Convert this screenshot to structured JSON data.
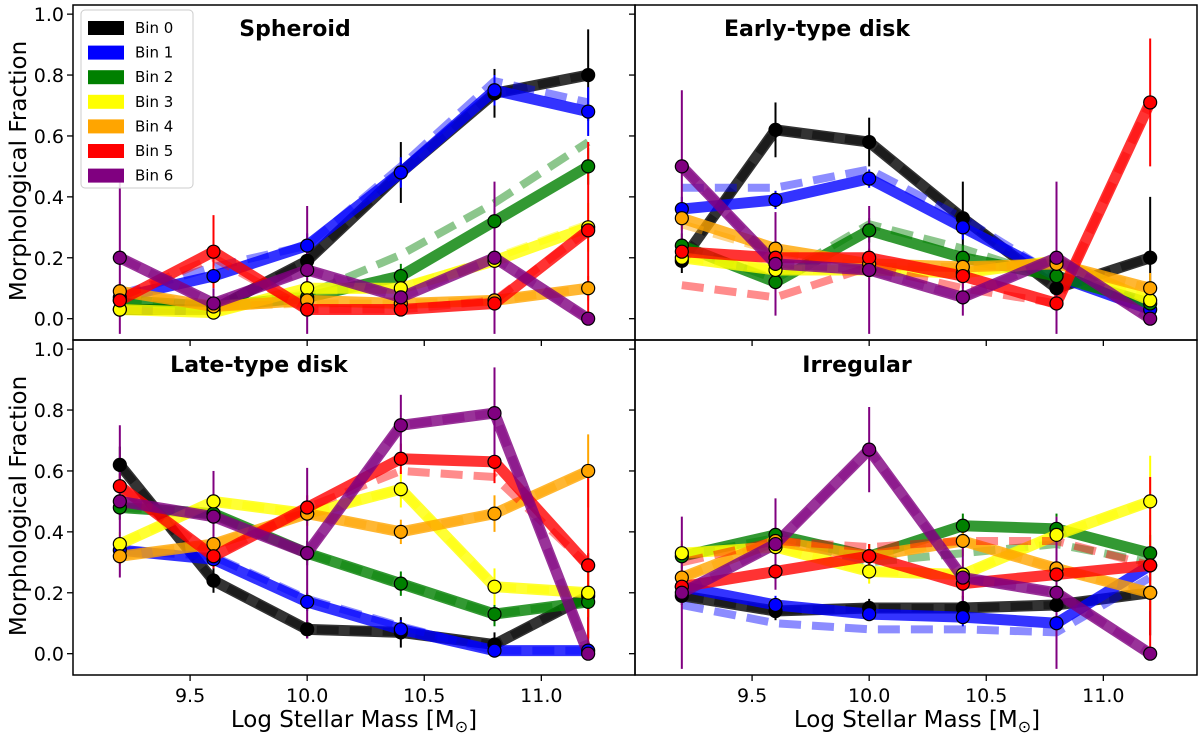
{
  "chart_data": {
    "type": "line",
    "xlabel": "Log Stellar Mass [M",
    "xlabel_sub": "⊙",
    "xlabel_close": "]",
    "ylabel": "Morphological Fraction",
    "x": [
      9.2,
      9.6,
      10.0,
      10.4,
      10.8,
      11.2
    ],
    "xlim": [
      9.0,
      11.4
    ],
    "ylim": [
      -0.07,
      1.03
    ],
    "xticks": [
      9.5,
      10.0,
      10.5,
      11.0
    ],
    "xtick_labels": [
      "9.5",
      "10.0",
      "10.5",
      "11.0"
    ],
    "yticks": [
      0.0,
      0.2,
      0.4,
      0.6,
      0.8,
      1.0
    ],
    "ytick_labels": [
      "0.0",
      "0.2",
      "0.4",
      "0.6",
      "0.8",
      "1.0"
    ],
    "legend": {
      "placement": "upper-left of top-left panel",
      "entries": [
        {
          "label": "Bin 0",
          "color": "#000000"
        },
        {
          "label": "Bin 1",
          "color": "#0000ff"
        },
        {
          "label": "Bin 2",
          "color": "#008000"
        },
        {
          "label": "Bin 3",
          "color": "#ffff00"
        },
        {
          "label": "Bin 4",
          "color": "#ffa500"
        },
        {
          "label": "Bin 5",
          "color": "#ff0000"
        },
        {
          "label": "Bin 6",
          "color": "#800080"
        }
      ]
    },
    "panels": [
      {
        "title": "Spheroid",
        "series": [
          {
            "name": "Bin 0",
            "values": [
              0.03,
              0.03,
              0.19,
              0.48,
              0.74,
              0.8
            ],
            "errors": [
              0.02,
              0.02,
              0.04,
              0.1,
              0.08,
              0.15
            ],
            "dashed": [
              0.03,
              0.03,
              0.19,
              0.48,
              0.74,
              0.8
            ]
          },
          {
            "name": "Bin 1",
            "values": [
              0.07,
              0.14,
              0.24,
              0.48,
              0.75,
              0.68
            ],
            "errors": [
              0.03,
              0.03,
              0.04,
              0.05,
              0.05,
              0.08
            ],
            "dashed": [
              0.08,
              0.17,
              0.24,
              0.5,
              0.78,
              0.71
            ]
          },
          {
            "name": "Bin 2",
            "values": [
              0.06,
              0.04,
              0.07,
              0.14,
              0.32,
              0.5
            ],
            "errors": [
              0.03,
              0.02,
              0.03,
              0.04,
              0.05,
              0.06
            ],
            "dashed": [
              0.06,
              0.04,
              0.08,
              0.21,
              0.38,
              0.58
            ]
          },
          {
            "name": "Bin 3",
            "values": [
              0.03,
              0.02,
              0.1,
              0.1,
              0.19,
              0.3
            ],
            "errors": [
              0.02,
              0.02,
              0.03,
              0.03,
              0.05,
              0.08
            ],
            "dashed": [
              0.03,
              0.02,
              0.09,
              0.1,
              0.2,
              0.31
            ]
          },
          {
            "name": "Bin 4",
            "values": [
              0.09,
              0.04,
              0.06,
              0.05,
              0.06,
              0.1
            ],
            "errors": [
              0.03,
              0.02,
              0.02,
              0.02,
              0.02,
              0.04
            ],
            "dashed": [
              0.09,
              0.04,
              0.05,
              0.05,
              0.06,
              0.1
            ]
          },
          {
            "name": "Bin 5",
            "values": [
              0.06,
              0.22,
              0.03,
              0.03,
              0.05,
              0.29
            ],
            "errors": [
              0.03,
              0.12,
              0.02,
              0.02,
              0.03,
              0.29
            ],
            "dashed": [
              0.07,
              0.2,
              0.03,
              0.03,
              0.06,
              0.29
            ]
          },
          {
            "name": "Bin 6",
            "values": [
              0.2,
              0.05,
              0.16,
              0.07,
              0.2,
              0.0
            ],
            "errors": [
              0.25,
              0.05,
              0.21,
              0.06,
              0.25,
              0.0
            ],
            "dashed": [
              0.2,
              0.05,
              0.16,
              0.07,
              0.2,
              0.0
            ]
          }
        ]
      },
      {
        "title": "Early-type disk",
        "series": [
          {
            "name": "Bin 0",
            "values": [
              0.19,
              0.62,
              0.58,
              0.33,
              0.1,
              0.2
            ],
            "errors": [
              0.04,
              0.09,
              0.08,
              0.12,
              0.06,
              0.2
            ],
            "dashed": [
              0.19,
              0.62,
              0.58,
              0.33,
              0.1,
              0.2
            ]
          },
          {
            "name": "Bin 1",
            "values": [
              0.36,
              0.39,
              0.46,
              0.3,
              0.14,
              0.03
            ],
            "errors": [
              0.04,
              0.03,
              0.03,
              0.04,
              0.05,
              0.05
            ],
            "dashed": [
              0.43,
              0.43,
              0.49,
              0.33,
              0.14,
              0.05
            ]
          },
          {
            "name": "Bin 2",
            "values": [
              0.24,
              0.12,
              0.29,
              0.2,
              0.14,
              0.05
            ],
            "errors": [
              0.04,
              0.03,
              0.04,
              0.04,
              0.05,
              0.05
            ],
            "dashed": [
              0.24,
              0.13,
              0.31,
              0.23,
              0.13,
              0.05
            ]
          },
          {
            "name": "Bin 3",
            "values": [
              0.2,
              0.16,
              0.16,
              0.15,
              0.19,
              0.06
            ],
            "errors": [
              0.03,
              0.03,
              0.03,
              0.04,
              0.06,
              0.06
            ],
            "dashed": [
              0.2,
              0.16,
              0.16,
              0.15,
              0.19,
              0.06
            ]
          },
          {
            "name": "Bin 4",
            "values": [
              0.33,
              0.23,
              0.18,
              0.17,
              0.18,
              0.1
            ],
            "errors": [
              0.04,
              0.04,
              0.03,
              0.04,
              0.05,
              0.05
            ],
            "dashed": [
              0.31,
              0.22,
              0.17,
              0.17,
              0.18,
              0.1
            ]
          },
          {
            "name": "Bin 5",
            "values": [
              0.22,
              0.2,
              0.2,
              0.14,
              0.05,
              0.71
            ],
            "errors": [
              0.03,
              0.03,
              0.03,
              0.04,
              0.03,
              0.21
            ],
            "dashed": [
              0.11,
              0.07,
              0.17,
              0.1,
              0.05,
              0.71
            ]
          },
          {
            "name": "Bin 6",
            "values": [
              0.5,
              0.18,
              0.16,
              0.07,
              0.2,
              0.0
            ],
            "errors": [
              0.25,
              0.17,
              0.21,
              0.06,
              0.25,
              0.0
            ],
            "dashed": [
              0.5,
              0.18,
              0.16,
              0.07,
              0.2,
              0.0
            ]
          }
        ]
      },
      {
        "title": "Late-type disk",
        "series": [
          {
            "name": "Bin 0",
            "values": [
              0.62,
              0.24,
              0.08,
              0.07,
              0.03,
              0.19
            ],
            "errors": [
              0.06,
              0.04,
              0.03,
              0.05,
              0.04,
              0.14
            ],
            "dashed": [
              0.62,
              0.24,
              0.08,
              0.07,
              0.03,
              0.19
            ]
          },
          {
            "name": "Bin 1",
            "values": [
              0.34,
              0.31,
              0.17,
              0.08,
              0.01,
              0.01
            ],
            "errors": [
              0.03,
              0.03,
              0.03,
              0.03,
              0.02,
              0.02
            ],
            "dashed": [
              0.34,
              0.32,
              0.18,
              0.09,
              0.01,
              0.01
            ]
          },
          {
            "name": "Bin 2",
            "values": [
              0.48,
              0.46,
              0.33,
              0.23,
              0.13,
              0.17
            ],
            "errors": [
              0.04,
              0.04,
              0.04,
              0.04,
              0.04,
              0.05
            ],
            "dashed": [
              0.48,
              0.46,
              0.33,
              0.23,
              0.13,
              0.17
            ]
          },
          {
            "name": "Bin 3",
            "values": [
              0.36,
              0.5,
              0.46,
              0.54,
              0.22,
              0.2
            ],
            "errors": [
              0.04,
              0.04,
              0.04,
              0.06,
              0.06,
              0.08
            ],
            "dashed": [
              0.36,
              0.5,
              0.46,
              0.54,
              0.22,
              0.2
            ]
          },
          {
            "name": "Bin 4",
            "values": [
              0.32,
              0.36,
              0.46,
              0.4,
              0.46,
              0.6
            ],
            "errors": [
              0.03,
              0.04,
              0.04,
              0.04,
              0.06,
              0.12
            ],
            "dashed": [
              0.32,
              0.36,
              0.46,
              0.4,
              0.46,
              0.6
            ]
          },
          {
            "name": "Bin 5",
            "values": [
              0.55,
              0.32,
              0.48,
              0.64,
              0.63,
              0.29
            ],
            "errors": [
              0.04,
              0.04,
              0.04,
              0.05,
              0.07,
              0.29
            ],
            "dashed": [
              0.55,
              0.32,
              0.48,
              0.6,
              0.58,
              0.29
            ]
          },
          {
            "name": "Bin 6",
            "values": [
              0.5,
              0.45,
              0.33,
              0.75,
              0.79,
              0.0
            ],
            "errors": [
              0.25,
              0.15,
              0.28,
              0.1,
              0.15,
              0.0
            ],
            "dashed": [
              0.5,
              0.45,
              0.33,
              0.75,
              0.79,
              0.0
            ]
          }
        ]
      },
      {
        "title": "Irregular",
        "series": [
          {
            "name": "Bin 0",
            "values": [
              0.19,
              0.14,
              0.15,
              0.15,
              0.16,
              0.2
            ],
            "errors": [
              0.03,
              0.03,
              0.03,
              0.04,
              0.05,
              0.14
            ],
            "dashed": [
              0.19,
              0.14,
              0.15,
              0.15,
              0.16,
              0.2
            ]
          },
          {
            "name": "Bin 1",
            "values": [
              0.22,
              0.16,
              0.13,
              0.12,
              0.1,
              0.29
            ],
            "errors": [
              0.03,
              0.03,
              0.02,
              0.03,
              0.03,
              0.05
            ],
            "dashed": [
              0.16,
              0.1,
              0.08,
              0.08,
              0.07,
              0.25
            ]
          },
          {
            "name": "Bin 2",
            "values": [
              0.32,
              0.39,
              0.32,
              0.42,
              0.41,
              0.33
            ],
            "errors": [
              0.04,
              0.04,
              0.04,
              0.04,
              0.05,
              0.06
            ],
            "dashed": [
              0.32,
              0.38,
              0.3,
              0.33,
              0.36,
              0.3
            ]
          },
          {
            "name": "Bin 3",
            "values": [
              0.33,
              0.35,
              0.27,
              0.26,
              0.39,
              0.5
            ],
            "errors": [
              0.04,
              0.04,
              0.04,
              0.05,
              0.06,
              0.15
            ],
            "dashed": [
              0.33,
              0.35,
              0.27,
              0.26,
              0.39,
              0.5
            ]
          },
          {
            "name": "Bin 4",
            "values": [
              0.25,
              0.37,
              0.32,
              0.37,
              0.28,
              0.2
            ],
            "errors": [
              0.03,
              0.04,
              0.04,
              0.05,
              0.06,
              0.06
            ],
            "dashed": [
              0.25,
              0.37,
              0.32,
              0.37,
              0.28,
              0.2
            ]
          },
          {
            "name": "Bin 5",
            "values": [
              0.22,
              0.27,
              0.32,
              0.23,
              0.26,
              0.29
            ],
            "errors": [
              0.03,
              0.04,
              0.04,
              0.05,
              0.06,
              0.29
            ],
            "dashed": [
              0.3,
              0.37,
              0.35,
              0.37,
              0.37,
              0.29
            ]
          },
          {
            "name": "Bin 6",
            "values": [
              0.2,
              0.36,
              0.67,
              0.25,
              0.2,
              0.0
            ],
            "errors": [
              0.25,
              0.15,
              0.14,
              0.12,
              0.25,
              0.0
            ],
            "dashed": [
              0.2,
              0.36,
              0.67,
              0.25,
              0.2,
              0.0
            ]
          }
        ]
      }
    ]
  }
}
